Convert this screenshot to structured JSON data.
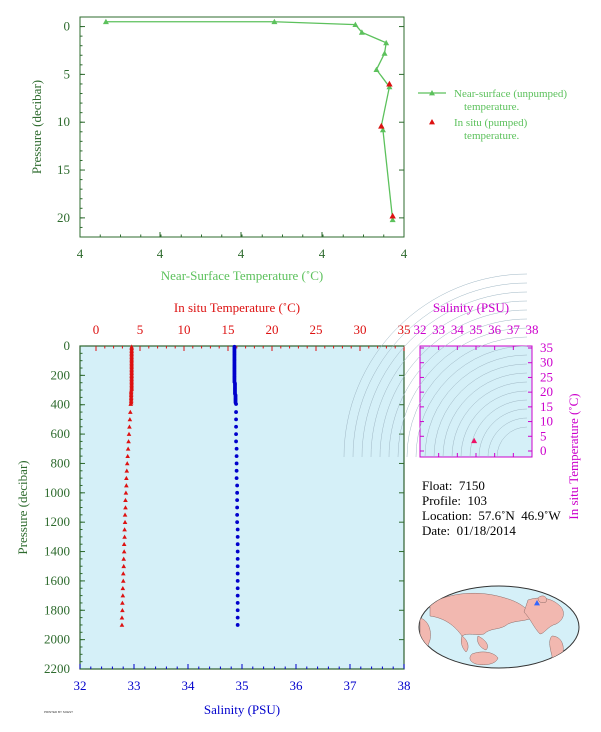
{
  "chart_data": [
    {
      "type": "line",
      "xlabel": "Near-Surface Temperature (˚C)",
      "ylabel": "Pressure (decibar)",
      "xticks": [
        "4",
        "4",
        "4",
        "4",
        "4",
        "4"
      ],
      "yticks": [
        0,
        5,
        10,
        15,
        20
      ],
      "ylim": [
        22,
        -1
      ],
      "series": [
        {
          "name": "Near-surface (unpumped) temperature.",
          "color": "#5cc15c",
          "points": [
            {
              "x": 0.08,
              "y": -0.5
            },
            {
              "x": 0.6,
              "y": -0.5
            },
            {
              "x": 0.85,
              "y": -0.2
            },
            {
              "x": 0.87,
              "y": 0.6
            },
            {
              "x": 0.945,
              "y": 1.7
            },
            {
              "x": 0.94,
              "y": 2.8
            },
            {
              "x": 0.915,
              "y": 4.5
            },
            {
              "x": 0.955,
              "y": 6.3
            },
            {
              "x": 0.93,
              "y": 10.4
            },
            {
              "x": 0.935,
              "y": 10.8
            },
            {
              "x": 0.965,
              "y": 20.2
            }
          ]
        },
        {
          "name": "In situ (pumped) temperature.",
          "color": "#dd1111",
          "points": [
            {
              "x": 0.955,
              "y": 6.0
            },
            {
              "x": 0.93,
              "y": 10.4
            },
            {
              "x": 0.965,
              "y": 19.8
            }
          ]
        }
      ],
      "legend_position": "right",
      "grid": false
    },
    {
      "type": "scatter",
      "title_top": "In situ Temperature (˚C)",
      "xlabel": "Salinity (PSU)",
      "ylabel": "Pressure (decibar)",
      "temp_ticks": [
        0,
        5,
        10,
        15,
        20,
        25,
        30,
        35
      ],
      "sal_ticks": [
        32,
        33,
        34,
        35,
        36,
        37,
        38
      ],
      "pres_ticks": [
        0,
        200,
        400,
        600,
        800,
        1000,
        1200,
        1400,
        1600,
        1800,
        2000,
        2200
      ],
      "temp_lim": [
        -2,
        35
      ],
      "sal_lim": [
        32,
        38
      ],
      "pres_lim": [
        0,
        2200
      ],
      "series": [
        {
          "name": "In situ Temperature (˚C)",
          "color": "#dd1111",
          "pressure": [
            5,
            15,
            25,
            35,
            45,
            55,
            65,
            75,
            85,
            95,
            105,
            115,
            125,
            135,
            145,
            155,
            165,
            175,
            185,
            195,
            205,
            215,
            225,
            235,
            245,
            255,
            265,
            275,
            285,
            295,
            305,
            315,
            325,
            335,
            345,
            355,
            365,
            375,
            385,
            395,
            450,
            500,
            550,
            600,
            650,
            700,
            750,
            800,
            850,
            900,
            950,
            1000,
            1050,
            1100,
            1150,
            1200,
            1250,
            1300,
            1350,
            1400,
            1450,
            1500,
            1550,
            1600,
            1650,
            1700,
            1750,
            1800,
            1850,
            1900
          ],
          "value": [
            4.05,
            4.05,
            4.05,
            4.05,
            4.05,
            4.05,
            4.05,
            4.05,
            4.05,
            4.05,
            4.05,
            4.05,
            4.05,
            4.05,
            4.05,
            4.05,
            4.05,
            4.05,
            4.05,
            4.05,
            4.05,
            4.05,
            4.05,
            4.05,
            4.05,
            4.05,
            4.05,
            4.05,
            4.05,
            4.05,
            4.0,
            4.0,
            4.0,
            4.0,
            4.0,
            4.0,
            4.0,
            4.0,
            4.0,
            3.95,
            3.9,
            3.85,
            3.8,
            3.75,
            3.7,
            3.65,
            3.6,
            3.55,
            3.5,
            3.45,
            3.45,
            3.4,
            3.35,
            3.35,
            3.3,
            3.3,
            3.25,
            3.25,
            3.2,
            3.2,
            3.15,
            3.15,
            3.1,
            3.1,
            3.05,
            3.05,
            3.0,
            3.0,
            2.95,
            2.95
          ]
        },
        {
          "name": "Salinity (PSU)",
          "color": "#0000cc",
          "pressure": [
            5,
            15,
            25,
            35,
            45,
            55,
            65,
            75,
            85,
            95,
            105,
            115,
            125,
            135,
            145,
            155,
            165,
            175,
            185,
            195,
            205,
            215,
            225,
            235,
            245,
            255,
            265,
            275,
            285,
            295,
            305,
            315,
            325,
            335,
            345,
            355,
            365,
            375,
            385,
            395,
            450,
            500,
            550,
            600,
            650,
            700,
            750,
            800,
            850,
            900,
            950,
            1000,
            1050,
            1100,
            1150,
            1200,
            1250,
            1300,
            1350,
            1400,
            1450,
            1500,
            1550,
            1600,
            1650,
            1700,
            1750,
            1800,
            1850,
            1900
          ],
          "value": [
            34.86,
            34.86,
            34.86,
            34.86,
            34.86,
            34.86,
            34.86,
            34.86,
            34.86,
            34.86,
            34.86,
            34.86,
            34.86,
            34.86,
            34.86,
            34.86,
            34.86,
            34.86,
            34.86,
            34.86,
            34.86,
            34.86,
            34.86,
            34.86,
            34.86,
            34.87,
            34.87,
            34.87,
            34.87,
            34.87,
            34.87,
            34.87,
            34.87,
            34.88,
            34.88,
            34.88,
            34.88,
            34.88,
            34.88,
            34.89,
            34.89,
            34.89,
            34.89,
            34.89,
            34.89,
            34.9,
            34.9,
            34.9,
            34.9,
            34.9,
            34.91,
            34.91,
            34.91,
            34.91,
            34.91,
            34.91,
            34.92,
            34.92,
            34.92,
            34.92,
            34.92,
            34.92,
            34.92,
            34.92,
            34.92,
            34.92,
            34.92,
            34.92,
            34.92,
            34.92
          ]
        }
      ]
    },
    {
      "type": "scatter",
      "title_top": "Salinity (PSU)",
      "ylabel": "In situ Temperature (˚C)",
      "sal_ticks": [
        32,
        33,
        34,
        35,
        36,
        37,
        38
      ],
      "temp_ticks": [
        0,
        5,
        10,
        15,
        20,
        25,
        30,
        35
      ],
      "sal_lim": [
        32,
        38
      ],
      "temp_lim": [
        -2,
        36
      ],
      "points": [
        {
          "x": 34.9,
          "y": 3.5
        }
      ],
      "color": "#cc00cc",
      "point_color": "#ee1166"
    }
  ],
  "float_info": {
    "float": "Float:  7150",
    "profile": "Profile:  103",
    "location": "Location:  57.6˚N  46.9˚W",
    "date": "Date:  01/18/2014"
  },
  "footer": "PRINTED BY SOEST",
  "colors": {
    "axis_green": "#2e6b2e",
    "line_green": "#5cc15c",
    "red": "#dd1111",
    "blue": "#0000cc",
    "magenta": "#cc00cc",
    "panel_bg": "#d5f0f8"
  },
  "map": {
    "marker_color": "#3366ff",
    "land_color": "#f2b8b0",
    "ocean_color": "#d5f0f8"
  }
}
